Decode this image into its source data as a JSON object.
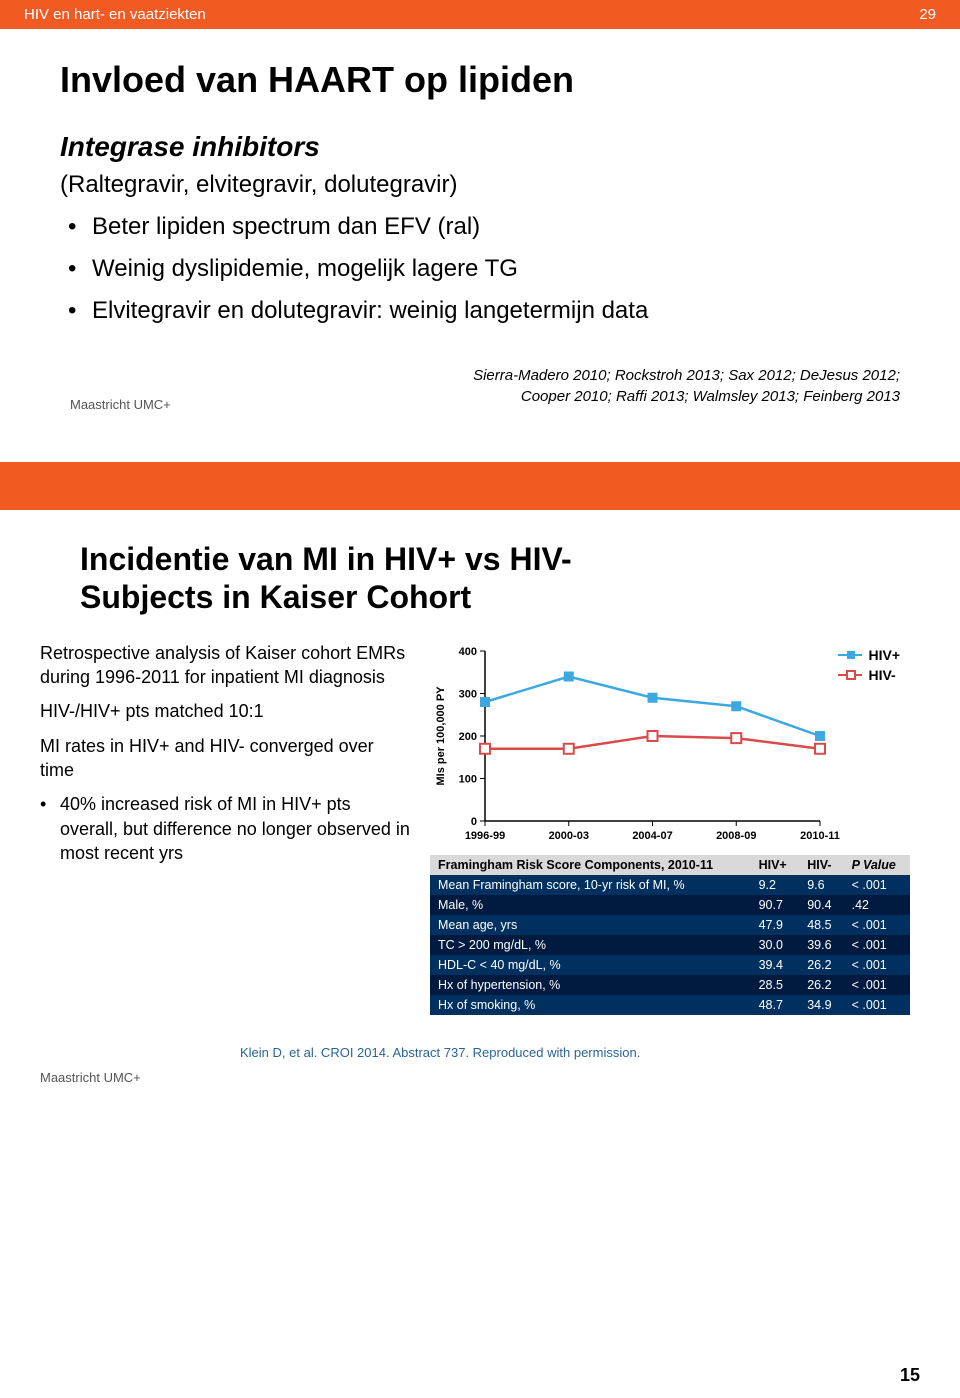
{
  "header": {
    "title": "HIV en hart- en vaatziekten",
    "page_right": "29"
  },
  "slide1": {
    "title": "Invloed van HAART op lipiden",
    "subtitle": "Integrase inhibitors",
    "paren": "(Raltegravir, elvitegravir, dolutegravir)",
    "bullets": [
      "Beter lipiden spectrum dan EFV (ral)",
      "Weinig dyslipidemie, mogelijk lagere TG",
      "Elvitegravir en dolutegravir: weinig langetermijn data"
    ],
    "citation1": "Sierra-Madero 2010; Rockstroh 2013; Sax 2012; DeJesus 2012;",
    "citation2": "Cooper 2010; Raffi 2013; Walmsley 2013; Feinberg 2013",
    "footer_logo": "Maastricht UMC+"
  },
  "slide2": {
    "title_l1": "Incidentie van MI in HIV+ vs HIV-",
    "title_l2": "Subjects in Kaiser Cohort",
    "left_lead1": "Retrospective analysis of Kaiser cohort EMRs during 1996-2011 for inpatient MI diagnosis",
    "left_lead2": "HIV-/HIV+ pts matched 10:1",
    "left_lead3": "MI rates in HIV+ and HIV- converged over time",
    "left_bullet": "40% increased risk of MI in HIV+ pts overall, but difference no longer observed in most recent yrs",
    "chart": {
      "type": "line",
      "ylabel": "MIs per 100,000 PY",
      "ylim": [
        0,
        400
      ],
      "ytick_step": 100,
      "xticks": [
        "1996-99",
        "2000-03",
        "2004-07",
        "2008-09",
        "2010-11"
      ],
      "series": [
        {
          "name": "HIV+",
          "color": "#3ba9e0",
          "marker": "square-filled",
          "values": [
            280,
            340,
            290,
            270,
            200
          ]
        },
        {
          "name": "HIV-",
          "color": "#d94a4a",
          "marker": "square-open",
          "values": [
            170,
            170,
            200,
            195,
            170
          ]
        }
      ],
      "bg": "#ffffff",
      "axis_color": "#000000",
      "label_fontsize": 11
    },
    "table": {
      "header": [
        "Framingham Risk Score Components, 2010-11",
        "HIV+",
        "HIV-",
        "P Value"
      ],
      "rows": [
        [
          "Mean Framingham score, 10-yr risk of MI, %",
          "9.2",
          "9.6",
          "< .001"
        ],
        [
          "Male, %",
          "90.7",
          "90.4",
          ".42"
        ],
        [
          "Mean age, yrs",
          "47.9",
          "48.5",
          "< .001"
        ],
        [
          "TC > 200 mg/dL, %",
          "30.0",
          "39.6",
          "< .001"
        ],
        [
          "HDL-C < 40 mg/dL, %",
          "39.4",
          "26.2",
          "< .001"
        ],
        [
          "Hx of hypertension, %",
          "28.5",
          "26.2",
          "< .001"
        ],
        [
          "Hx of smoking, %",
          "48.7",
          "34.9",
          "< .001"
        ]
      ],
      "row_colors": [
        "#003060",
        "#001a40",
        "#003060",
        "#001a40",
        "#003060",
        "#001a40",
        "#003060"
      ]
    },
    "footer_cite": "Klein D, et al. CROI 2014. Abstract 737. Reproduced with permission.",
    "footer_logo": "Maastricht UMC+"
  },
  "page_number": "15"
}
